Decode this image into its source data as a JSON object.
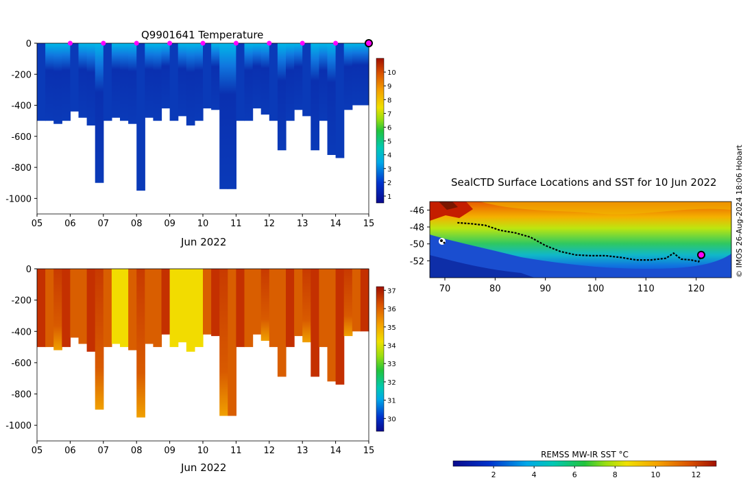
{
  "chart_data": [
    {
      "type": "heatmap",
      "title": "Q9901641  Temperature",
      "xlabel": "Jun 2022",
      "ylabel": "",
      "x_ticks": [
        "05",
        "06",
        "07",
        "08",
        "09",
        "10",
        "11",
        "12",
        "13",
        "14",
        "15"
      ],
      "y_ticks": [
        0,
        -200,
        -400,
        -600,
        -800,
        -1000
      ],
      "ylim": [
        -1100,
        0
      ],
      "colorbar": {
        "min": 0.5,
        "max": 11,
        "ticks": [
          1,
          2,
          3,
          4,
          5,
          6,
          7,
          8,
          9,
          10
        ]
      },
      "surface_markers_day": [
        6,
        7,
        8,
        9,
        10,
        11,
        12,
        13,
        14
      ],
      "current_position_day": 15,
      "profile_max_depth_m": [
        500,
        500,
        520,
        500,
        440,
        480,
        530,
        900,
        500,
        480,
        500,
        520,
        950,
        480,
        500,
        420,
        500,
        470,
        530,
        500,
        420,
        430,
        940,
        940,
        500,
        500,
        420,
        460,
        500,
        690,
        500,
        430,
        470,
        690,
        500,
        720,
        740,
        430,
        400,
        400
      ]
    },
    {
      "type": "heatmap",
      "title": "",
      "xlabel": "Jun 2022",
      "ylabel": "",
      "x_ticks": [
        "05",
        "06",
        "07",
        "08",
        "09",
        "10",
        "11",
        "12",
        "13",
        "14",
        "15"
      ],
      "y_ticks": [
        0,
        -200,
        -400,
        -600,
        -800,
        -1000
      ],
      "ylim": [
        -1100,
        0
      ],
      "colorbar": {
        "min": 29.3,
        "max": 37.2,
        "ticks": [
          30,
          31,
          32,
          33,
          34,
          35,
          36,
          37
        ]
      },
      "profile_max_depth_m": [
        500,
        500,
        520,
        500,
        440,
        480,
        530,
        900,
        500,
        480,
        500,
        520,
        950,
        480,
        500,
        420,
        500,
        470,
        530,
        500,
        420,
        430,
        940,
        940,
        500,
        500,
        420,
        460,
        500,
        690,
        500,
        430,
        470,
        690,
        500,
        720,
        740,
        430,
        400,
        400
      ]
    },
    {
      "type": "heatmap",
      "title": "SealCTD Surface Locations and SST for 10 Jun 2022",
      "xlabel": "",
      "ylabel": "",
      "x_ticks": [
        70,
        80,
        90,
        100,
        110,
        120
      ],
      "y_ticks": [
        -46,
        -48,
        -50,
        -52
      ],
      "xlim": [
        67,
        127
      ],
      "ylim": [
        -54,
        -45
      ],
      "colorbar": {
        "label": "REMSS MW-IR SST °C",
        "min": 0,
        "max": 13,
        "ticks": [
          2,
          4,
          6,
          8,
          10,
          12
        ]
      },
      "track": [
        [
          72.5,
          -47.5
        ],
        [
          75,
          -47.6
        ],
        [
          78,
          -47.8
        ],
        [
          81,
          -48.4
        ],
        [
          84,
          -48.7
        ],
        [
          87,
          -49.2
        ],
        [
          90,
          -50.2
        ],
        [
          93,
          -50.9
        ],
        [
          96,
          -51.3
        ],
        [
          99,
          -51.4
        ],
        [
          102,
          -51.4
        ],
        [
          105,
          -51.6
        ],
        [
          108,
          -51.9
        ],
        [
          111,
          -51.9
        ],
        [
          114,
          -51.7
        ],
        [
          115.5,
          -51.1
        ],
        [
          117,
          -51.8
        ],
        [
          119,
          -51.9
        ],
        [
          120.5,
          -52.1
        ],
        [
          121,
          -51.3
        ]
      ],
      "current_position": [
        121,
        -51.3
      ]
    }
  ],
  "credit": "© IMOS 26-Aug-2024 18:06 Hobart",
  "colors": {
    "axis": "#000000",
    "marker": "#ff00ff"
  }
}
